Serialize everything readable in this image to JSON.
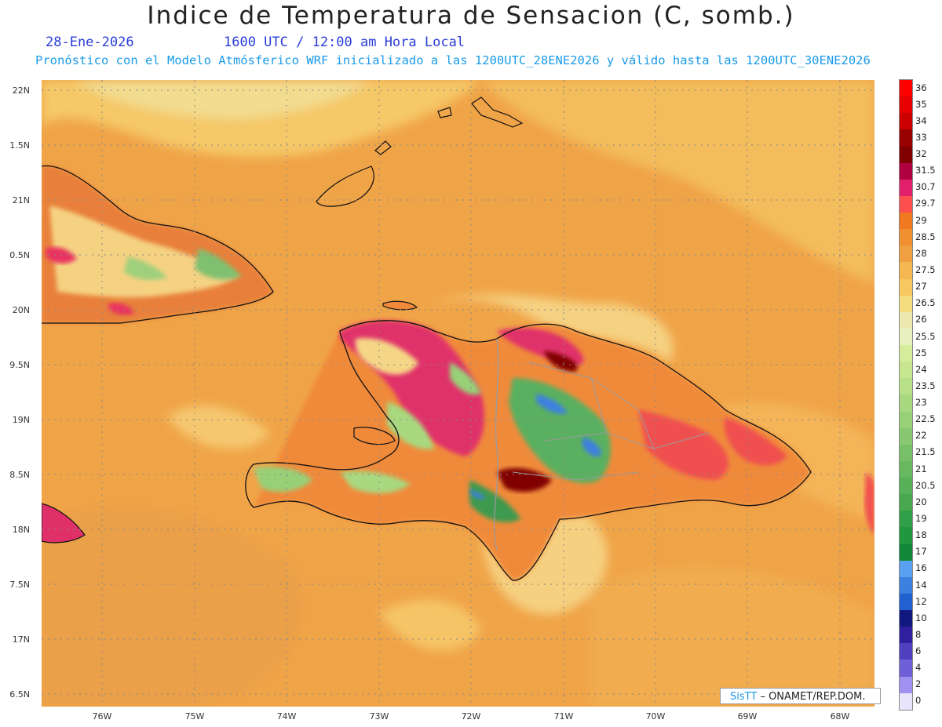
{
  "title": "Indice de Temperatura de Sensacion (C, somb.)",
  "date": "28-Ene-2026",
  "time": "1600 UTC / 12:00 am Hora Local",
  "forecast_note": "Pronóstico con el Modelo Atmósferico WRF inicializado a las 1200UTC_28ENE2026 y válido hasta las  1200UTC_30ENE2026",
  "lat_labels": [
    "22N",
    "1.5N",
    "21N",
    "0.5N",
    "20N",
    "9.5N",
    "19N",
    "8.5N",
    "18N",
    "7.5N",
    "17N",
    "6.5N"
  ],
  "lon_labels": [
    "76W",
    "75W",
    "74W",
    "73W",
    "72W",
    "71W",
    "70W",
    "69W",
    "68W"
  ],
  "colorbar": {
    "labels": [
      "36",
      "35",
      "34",
      "33",
      "32",
      "31.5",
      "30.7",
      "29.7",
      "29",
      "28.5",
      "28",
      "27.5",
      "27",
      "26.5",
      "26",
      "25.5",
      "25",
      "24",
      "23.5",
      "23",
      "22.5",
      "22",
      "21.5",
      "21",
      "20.5",
      "20",
      "19",
      "18",
      "17",
      "16",
      "14",
      "12",
      "10",
      "8",
      "6",
      "4",
      "2",
      "0"
    ],
    "colors": [
      "#ff0000",
      "#e60000",
      "#cc0000",
      "#990000",
      "#800000",
      "#b00040",
      "#e0206a",
      "#ff5050",
      "#f07820",
      "#f09030",
      "#f0a040",
      "#f5b850",
      "#f5c860",
      "#f5dc80",
      "#ece8b0",
      "#e8f0c0",
      "#d4ec9c",
      "#c8e690",
      "#b8e088",
      "#a8d880",
      "#98d078",
      "#88c870",
      "#78c068",
      "#68b860",
      "#58b058",
      "#48a850",
      "#30a048",
      "#209840",
      "#108838",
      "#5aa0f0",
      "#3c80e0",
      "#2060d0",
      "#101880",
      "#3020a0",
      "#5040c0",
      "#7060d8",
      "#a090f0",
      "#e8e4fc"
    ]
  },
  "credit": {
    "brand": "SisTT",
    "text": "– ONAMET/REP.DOM."
  }
}
